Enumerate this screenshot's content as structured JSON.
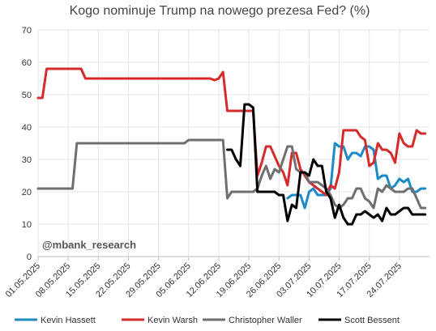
{
  "chart_data": {
    "type": "line",
    "title": "Kogo nominuje Trump na nowego prezesa Fed? (%)",
    "ylim": [
      0,
      70
    ],
    "yticks": [
      0,
      10,
      20,
      30,
      40,
      50,
      60,
      70
    ],
    "xlim": [
      "2025-05-01",
      "2025-07-31"
    ],
    "xticks": [
      "01.05.2025",
      "08.05.2025",
      "15.05.2025",
      "22.05.2025",
      "29.05.2025",
      "05.06.2025",
      "12.06.2025",
      "19.06.2025",
      "26.06.2025",
      "03.07.2025",
      "10.07.2025",
      "17.07.2025",
      "24.07.2025"
    ],
    "grid": true,
    "legend": "bottom",
    "annotation": "@mbank_research",
    "series": [
      {
        "name": "Kevin Hassett",
        "color": "#1d8ac8",
        "points": [
          [
            "2025-06-28",
            18
          ],
          [
            "2025-06-29",
            19
          ],
          [
            "2025-06-30",
            19
          ],
          [
            "2025-07-01",
            19
          ],
          [
            "2025-07-02",
            15
          ],
          [
            "2025-07-03",
            20
          ],
          [
            "2025-07-04",
            21
          ],
          [
            "2025-07-05",
            19
          ],
          [
            "2025-07-06",
            19
          ],
          [
            "2025-07-07",
            19
          ],
          [
            "2025-07-08",
            21
          ],
          [
            "2025-07-09",
            35
          ],
          [
            "2025-07-10",
            34
          ],
          [
            "2025-07-11",
            34
          ],
          [
            "2025-07-12",
            30
          ],
          [
            "2025-07-13",
            32
          ],
          [
            "2025-07-14",
            32
          ],
          [
            "2025-07-15",
            31
          ],
          [
            "2025-07-16",
            34
          ],
          [
            "2025-07-17",
            34
          ],
          [
            "2025-07-18",
            33
          ],
          [
            "2025-07-19",
            24
          ],
          [
            "2025-07-20",
            25
          ],
          [
            "2025-07-21",
            25
          ],
          [
            "2025-07-22",
            21
          ],
          [
            "2025-07-23",
            22
          ],
          [
            "2025-07-24",
            24
          ],
          [
            "2025-07-25",
            23
          ],
          [
            "2025-07-26",
            24
          ],
          [
            "2025-07-27",
            20
          ],
          [
            "2025-07-28",
            20
          ],
          [
            "2025-07-29",
            21
          ],
          [
            "2025-07-30",
            21
          ]
        ]
      },
      {
        "name": "Kevin Warsh",
        "color": "#d52b2b",
        "points": [
          [
            "2025-05-01",
            49
          ],
          [
            "2025-05-02",
            49
          ],
          [
            "2025-05-03",
            58
          ],
          [
            "2025-05-04",
            58
          ],
          [
            "2025-05-10",
            58
          ],
          [
            "2025-05-11",
            58
          ],
          [
            "2025-05-12",
            55
          ],
          [
            "2025-05-13",
            55
          ],
          [
            "2025-06-10",
            55
          ],
          [
            "2025-06-11",
            54.5
          ],
          [
            "2025-06-12",
            55
          ],
          [
            "2025-06-13",
            57
          ],
          [
            "2025-06-14",
            45
          ],
          [
            "2025-06-15",
            45
          ],
          [
            "2025-06-18",
            45
          ],
          [
            "2025-06-19",
            45
          ],
          [
            "2025-06-20",
            45
          ],
          [
            "2025-06-21",
            25
          ],
          [
            "2025-06-22",
            29
          ],
          [
            "2025-06-23",
            34
          ],
          [
            "2025-06-24",
            34
          ],
          [
            "2025-06-25",
            31
          ],
          [
            "2025-06-26",
            28
          ],
          [
            "2025-06-27",
            26
          ],
          [
            "2025-06-28",
            22
          ],
          [
            "2025-06-29",
            32
          ],
          [
            "2025-06-30",
            32
          ],
          [
            "2025-07-01",
            27
          ],
          [
            "2025-07-02",
            25
          ],
          [
            "2025-07-03",
            23
          ],
          [
            "2025-07-04",
            22
          ],
          [
            "2025-07-05",
            21
          ],
          [
            "2025-07-06",
            20
          ],
          [
            "2025-07-07",
            19
          ],
          [
            "2025-07-08",
            22
          ],
          [
            "2025-07-09",
            21
          ],
          [
            "2025-07-10",
            26
          ],
          [
            "2025-07-11",
            39
          ],
          [
            "2025-07-12",
            39
          ],
          [
            "2025-07-13",
            39
          ],
          [
            "2025-07-14",
            39
          ],
          [
            "2025-07-15",
            37
          ],
          [
            "2025-07-16",
            36
          ],
          [
            "2025-07-17",
            28
          ],
          [
            "2025-07-18",
            29
          ],
          [
            "2025-07-19",
            35
          ],
          [
            "2025-07-20",
            33
          ],
          [
            "2025-07-21",
            33
          ],
          [
            "2025-07-22",
            32
          ],
          [
            "2025-07-23",
            29
          ],
          [
            "2025-07-24",
            38
          ],
          [
            "2025-07-25",
            35
          ],
          [
            "2025-07-26",
            34
          ],
          [
            "2025-07-27",
            34
          ],
          [
            "2025-07-28",
            39
          ],
          [
            "2025-07-29",
            38
          ],
          [
            "2025-07-30",
            38
          ]
        ]
      },
      {
        "name": "Christopher Waller",
        "color": "#6f6f6f",
        "points": [
          [
            "2025-05-01",
            21
          ],
          [
            "2025-05-02",
            21
          ],
          [
            "2025-05-05",
            21
          ],
          [
            "2025-05-06",
            21
          ],
          [
            "2025-05-07",
            21
          ],
          [
            "2025-05-08",
            21
          ],
          [
            "2025-05-09",
            21
          ],
          [
            "2025-05-10",
            35
          ],
          [
            "2025-05-11",
            35
          ],
          [
            "2025-06-04",
            35
          ],
          [
            "2025-06-05",
            36
          ],
          [
            "2025-06-06",
            36
          ],
          [
            "2025-06-13",
            36
          ],
          [
            "2025-06-14",
            18
          ],
          [
            "2025-06-15",
            20
          ],
          [
            "2025-06-16",
            20
          ],
          [
            "2025-06-20",
            20
          ],
          [
            "2025-06-21",
            21
          ],
          [
            "2025-06-22",
            25
          ],
          [
            "2025-06-23",
            28
          ],
          [
            "2025-06-24",
            24
          ],
          [
            "2025-06-25",
            27
          ],
          [
            "2025-06-26",
            26
          ],
          [
            "2025-06-27",
            30
          ],
          [
            "2025-06-28",
            34
          ],
          [
            "2025-06-29",
            34
          ],
          [
            "2025-06-30",
            27
          ],
          [
            "2025-07-01",
            26
          ],
          [
            "2025-07-02",
            26
          ],
          [
            "2025-07-03",
            23
          ],
          [
            "2025-07-04",
            23
          ],
          [
            "2025-07-05",
            23
          ],
          [
            "2025-07-06",
            22
          ],
          [
            "2025-07-07",
            21
          ],
          [
            "2025-07-08",
            19
          ],
          [
            "2025-07-09",
            16
          ],
          [
            "2025-07-10",
            15
          ],
          [
            "2025-07-11",
            16
          ],
          [
            "2025-07-12",
            18
          ],
          [
            "2025-07-13",
            18
          ],
          [
            "2025-07-14",
            21
          ],
          [
            "2025-07-15",
            21
          ],
          [
            "2025-07-16",
            18
          ],
          [
            "2025-07-17",
            17
          ],
          [
            "2025-07-18",
            15
          ],
          [
            "2025-07-19",
            21
          ],
          [
            "2025-07-20",
            20
          ],
          [
            "2025-07-21",
            22
          ],
          [
            "2025-07-22",
            21
          ],
          [
            "2025-07-23",
            20
          ],
          [
            "2025-07-24",
            20
          ],
          [
            "2025-07-25",
            20
          ],
          [
            "2025-07-26",
            21
          ],
          [
            "2025-07-27",
            21
          ],
          [
            "2025-07-28",
            18
          ],
          [
            "2025-07-29",
            15
          ],
          [
            "2025-07-30",
            15
          ]
        ]
      },
      {
        "name": "Scott Bessent",
        "color": "#000000",
        "points": [
          [
            "2025-06-14",
            33
          ],
          [
            "2025-06-15",
            33
          ],
          [
            "2025-06-16",
            30
          ],
          [
            "2025-06-17",
            28
          ],
          [
            "2025-06-18",
            47
          ],
          [
            "2025-06-19",
            47
          ],
          [
            "2025-06-20",
            46
          ],
          [
            "2025-06-21",
            20
          ],
          [
            "2025-06-22",
            20
          ],
          [
            "2025-06-25",
            20
          ],
          [
            "2025-06-26",
            19
          ],
          [
            "2025-06-27",
            19
          ],
          [
            "2025-06-28",
            11
          ],
          [
            "2025-06-29",
            16
          ],
          [
            "2025-06-30",
            15
          ],
          [
            "2025-07-01",
            26
          ],
          [
            "2025-07-02",
            26
          ],
          [
            "2025-07-03",
            25
          ],
          [
            "2025-07-04",
            30
          ],
          [
            "2025-07-05",
            28
          ],
          [
            "2025-07-06",
            28
          ],
          [
            "2025-07-07",
            20
          ],
          [
            "2025-07-08",
            18
          ],
          [
            "2025-07-09",
            12
          ],
          [
            "2025-07-10",
            16
          ],
          [
            "2025-07-11",
            12
          ],
          [
            "2025-07-12",
            10
          ],
          [
            "2025-07-13",
            10
          ],
          [
            "2025-07-14",
            13
          ],
          [
            "2025-07-15",
            13
          ],
          [
            "2025-07-16",
            14
          ],
          [
            "2025-07-17",
            13
          ],
          [
            "2025-07-18",
            12
          ],
          [
            "2025-07-19",
            13
          ],
          [
            "2025-07-20",
            11
          ],
          [
            "2025-07-21",
            15
          ],
          [
            "2025-07-22",
            13
          ],
          [
            "2025-07-23",
            13
          ],
          [
            "2025-07-24",
            14
          ],
          [
            "2025-07-25",
            15
          ],
          [
            "2025-07-26",
            15
          ],
          [
            "2025-07-27",
            13
          ],
          [
            "2025-07-28",
            13
          ],
          [
            "2025-07-29",
            13
          ],
          [
            "2025-07-30",
            13
          ]
        ]
      }
    ]
  }
}
